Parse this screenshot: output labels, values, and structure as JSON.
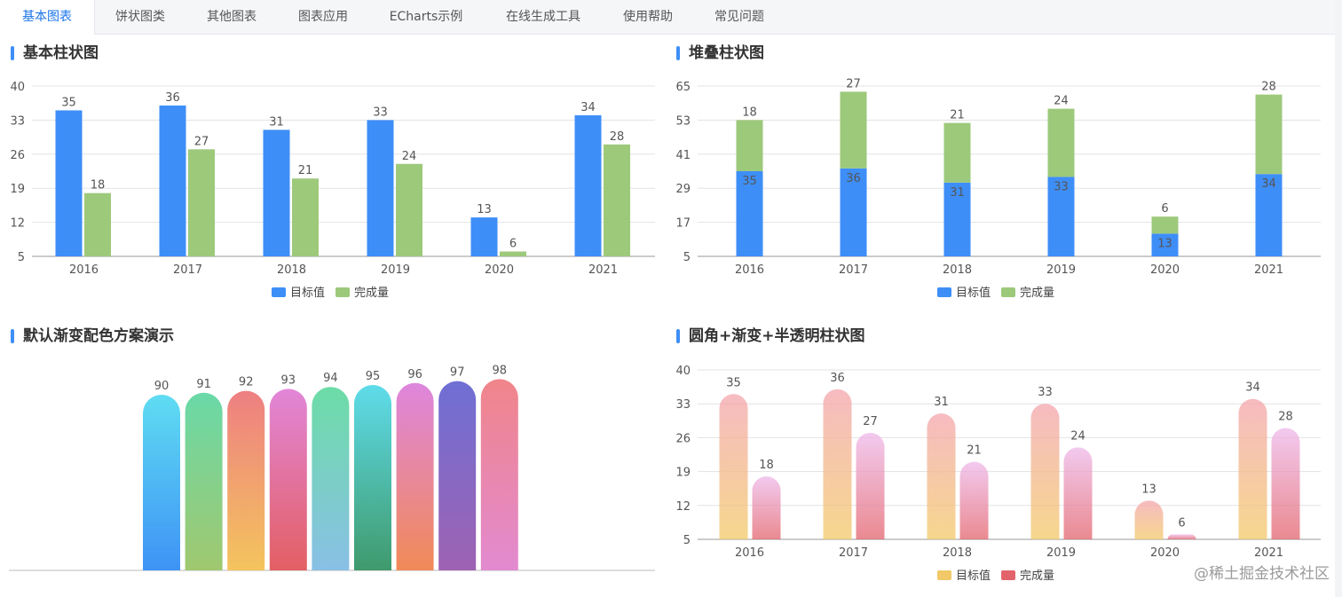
{
  "tabs": [
    "基本图表",
    "饼状图类",
    "其他图表",
    "图表应用",
    "ECharts示例",
    "在线生成工具",
    "使用帮助",
    "常见问题"
  ],
  "active_tab": 0,
  "watermark": "@稀土掘金技术社区",
  "colors": {
    "blue": "#3e8ef7",
    "green": "#9dc97b",
    "accent": "#1a73e8"
  },
  "chart_data": [
    {
      "type": "bar",
      "title": "基本柱状图",
      "categories": [
        "2016",
        "2017",
        "2018",
        "2019",
        "2020",
        "2021"
      ],
      "series": [
        {
          "name": "目标值",
          "values": [
            35,
            36,
            31,
            33,
            13,
            34
          ],
          "color": "#3e8ef7"
        },
        {
          "name": "完成量",
          "values": [
            18,
            27,
            21,
            24,
            6,
            28
          ],
          "color": "#9dc97b"
        }
      ],
      "yticks": [
        5,
        12,
        19,
        26,
        33,
        40
      ],
      "ylim": [
        5,
        40
      ],
      "legend": "bottom-center",
      "grid": true
    },
    {
      "type": "bar",
      "stacked": true,
      "title": "堆叠柱状图",
      "categories": [
        "2016",
        "2017",
        "2018",
        "2019",
        "2020",
        "2021"
      ],
      "series": [
        {
          "name": "目标值",
          "values": [
            35,
            36,
            31,
            33,
            13,
            34
          ],
          "color": "#3e8ef7"
        },
        {
          "name": "完成量",
          "values": [
            18,
            27,
            21,
            24,
            6,
            28
          ],
          "color": "#9dc97b"
        }
      ],
      "yticks": [
        5,
        17,
        29,
        41,
        53,
        65
      ],
      "ylim": [
        5,
        65
      ],
      "legend": "bottom-center",
      "grid": true
    },
    {
      "type": "bar",
      "title": "默认渐变配色方案演示",
      "values": [
        90,
        91,
        92,
        93,
        94,
        95,
        96,
        97,
        98
      ],
      "gradients": [
        [
          "#5fdcf2",
          "#3e93f5"
        ],
        [
          "#6ad9a8",
          "#a0c86f"
        ],
        [
          "#ee7f82",
          "#f4c45d"
        ],
        [
          "#e286d8",
          "#e35f63"
        ],
        [
          "#6cdca6",
          "#89c0e6"
        ],
        [
          "#5fdcea",
          "#3f9a6c"
        ],
        [
          "#de86de",
          "#f18a57"
        ],
        [
          "#6f6fd4",
          "#9e62b2"
        ],
        [
          "#f0858a",
          "#e28ad0"
        ]
      ],
      "ylim": [
        0,
        100
      ],
      "axis_visible": false
    },
    {
      "type": "bar",
      "title": "圆角+渐变+半透明柱状图",
      "categories": [
        "2016",
        "2017",
        "2018",
        "2019",
        "2020",
        "2021"
      ],
      "series": [
        {
          "name": "目标值",
          "values": [
            35,
            36,
            31,
            33,
            13,
            34
          ],
          "gradient": [
            "#f4a4ac",
            "#f2c968"
          ],
          "legend_color": "#f2c968"
        },
        {
          "name": "完成量",
          "values": [
            18,
            27,
            21,
            24,
            6,
            28
          ],
          "gradient": [
            "#eeb8ea",
            "#e3636c"
          ],
          "legend_color": "#e3636c"
        }
      ],
      "yticks": [
        5,
        12,
        19,
        26,
        33,
        40
      ],
      "ylim": [
        5,
        40
      ],
      "opacity": 0.75,
      "legend": "bottom-center",
      "grid": true
    }
  ]
}
